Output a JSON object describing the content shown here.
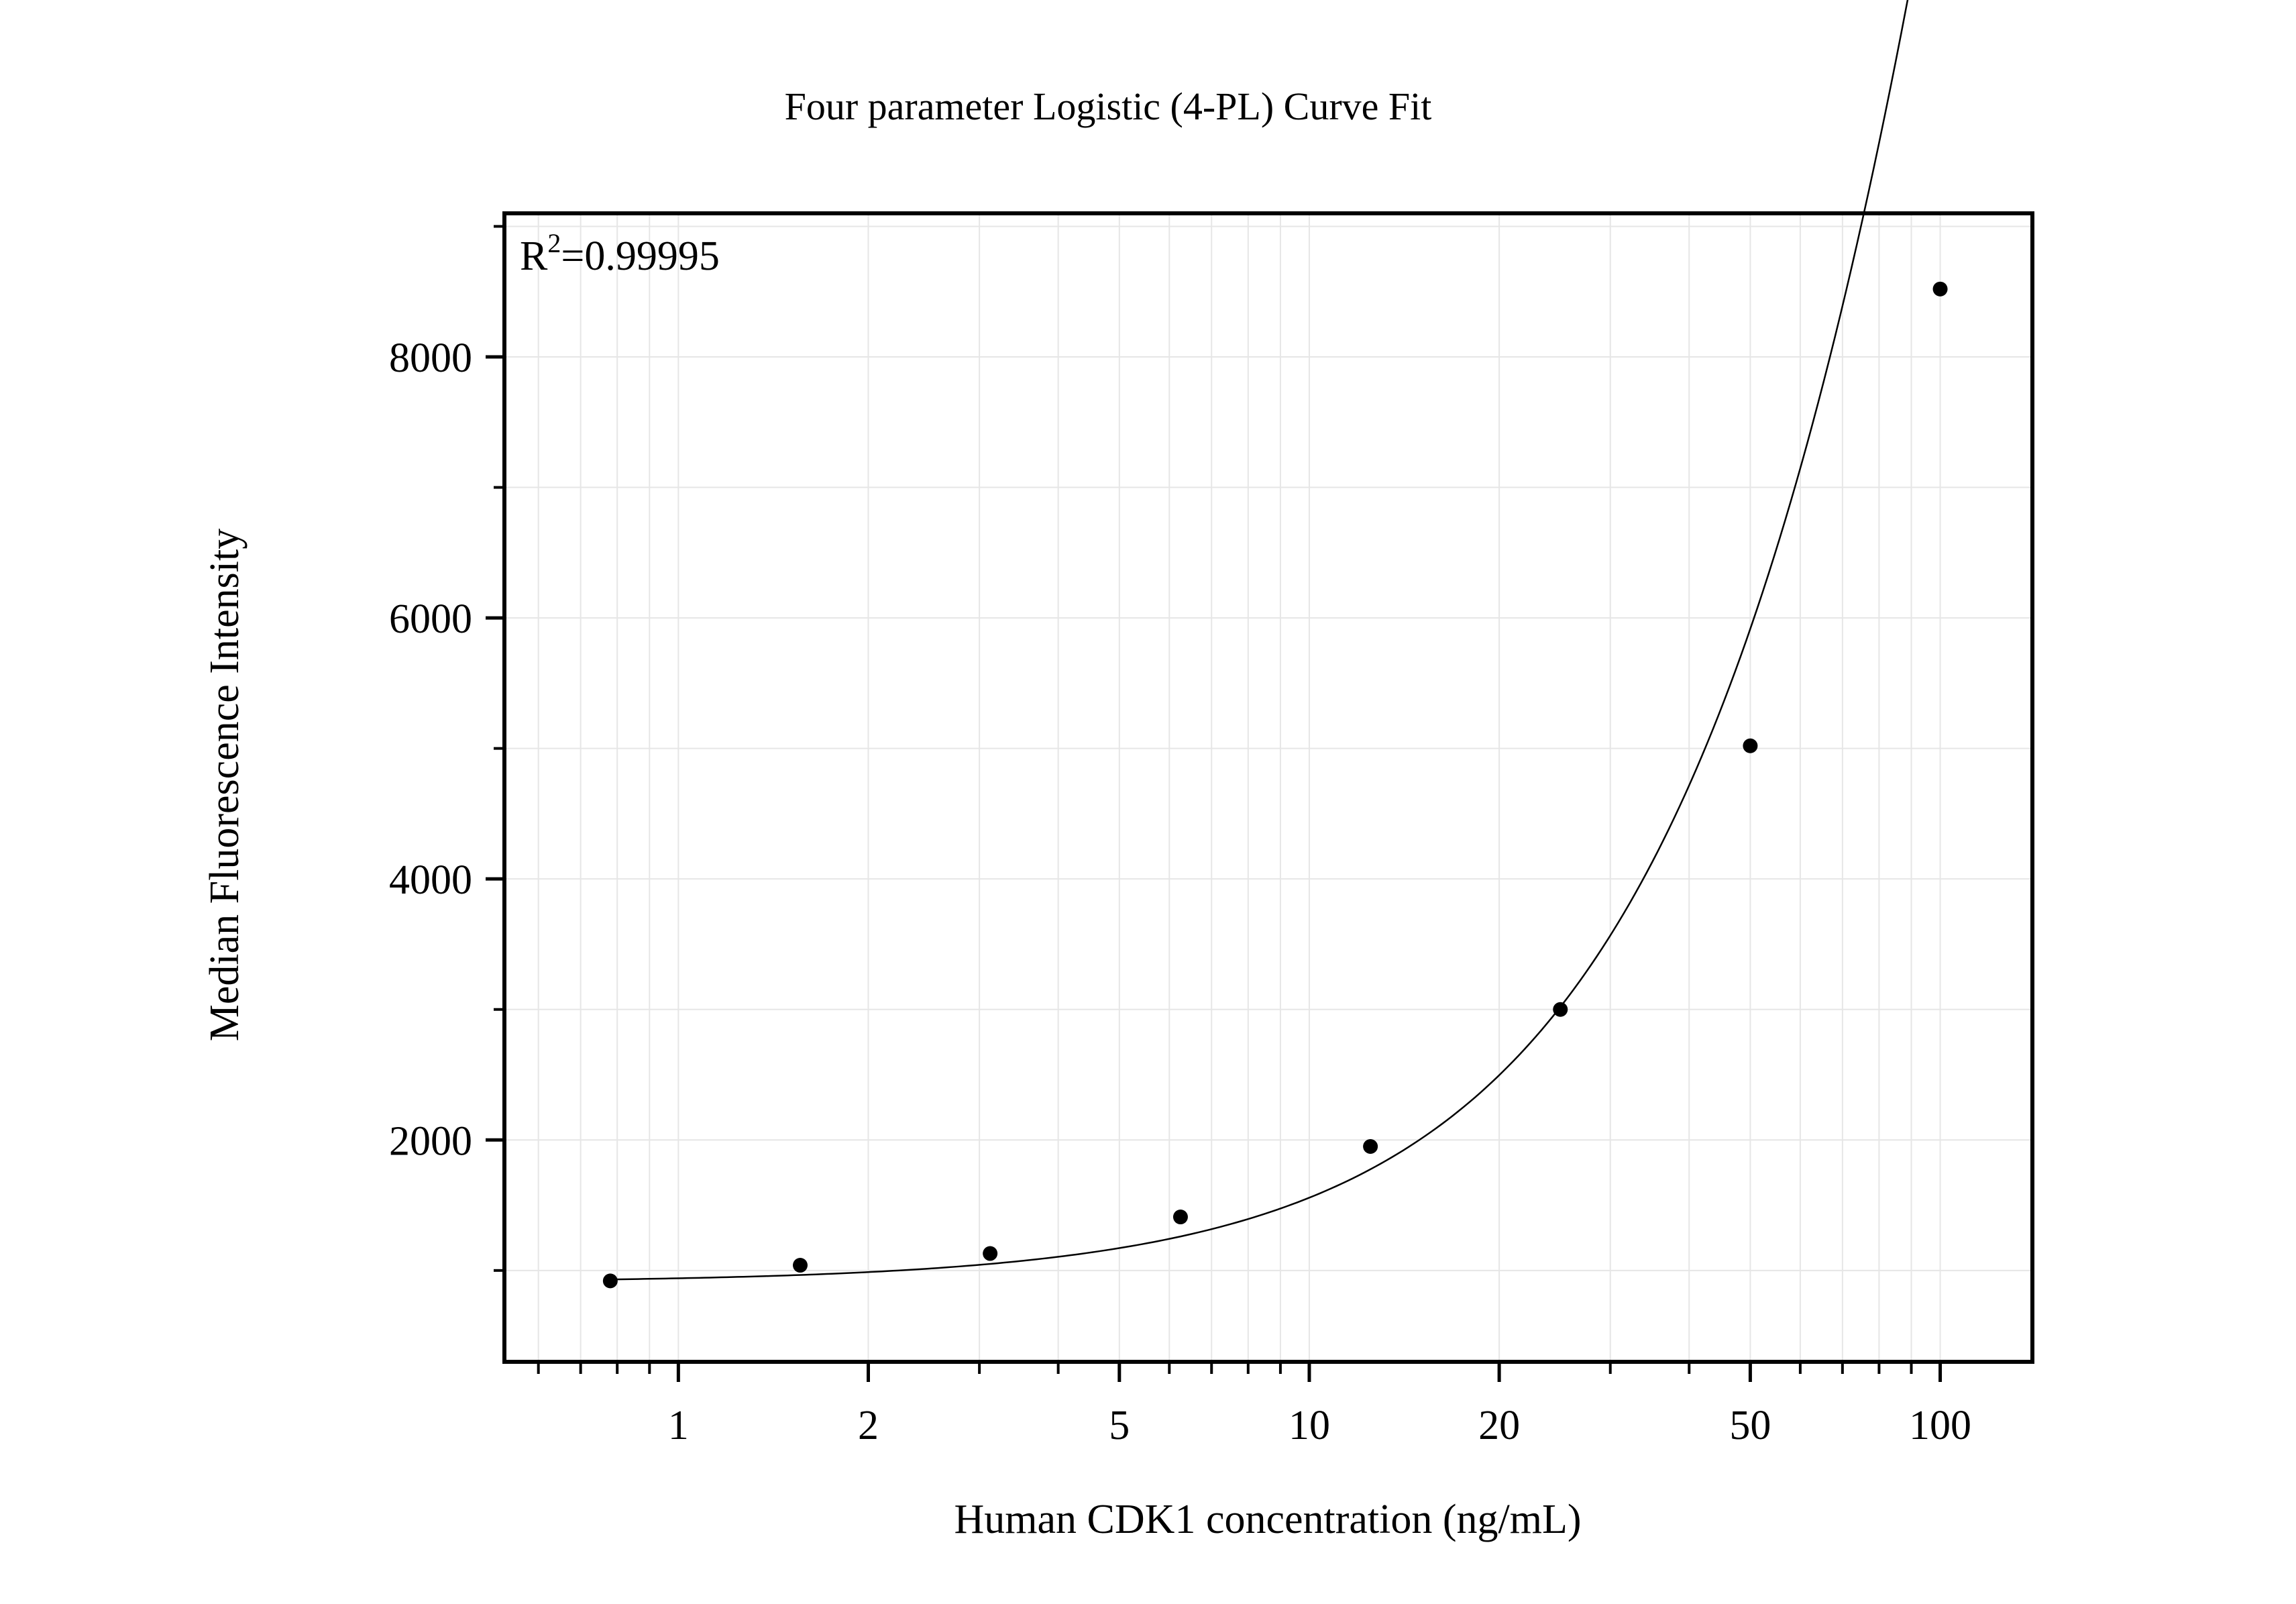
{
  "chart_data": {
    "type": "scatter",
    "title": "Four parameter Logistic (4-PL) Curve Fit",
    "xlabel": "Human CDK1 concentration (ng/mL)",
    "ylabel": "Median Fluorescence Intensity",
    "x_scale": "log",
    "xlim": [
      0.53,
      140
    ],
    "ylim": [
      300,
      9100
    ],
    "x_ticks": [
      1,
      2,
      5,
      10,
      20,
      50,
      100
    ],
    "x_tick_labels": [
      "1",
      "2",
      "5",
      "10",
      "20",
      "50",
      "100"
    ],
    "y_ticks": [
      2000,
      4000,
      6000,
      8000
    ],
    "y_tick_labels": [
      "2000",
      "4000",
      "6000",
      "8000"
    ],
    "y_minor_ticks": [
      1000,
      3000,
      5000,
      7000,
      9000
    ],
    "grid": true,
    "annotation": {
      "base": "R",
      "sup": "2",
      "rest": "=0.99995"
    },
    "points": [
      {
        "x": 0.78,
        "y": 920
      },
      {
        "x": 1.56,
        "y": 1040
      },
      {
        "x": 3.12,
        "y": 1130
      },
      {
        "x": 6.25,
        "y": 1410
      },
      {
        "x": 12.5,
        "y": 1950
      },
      {
        "x": 25,
        "y": 3000
      },
      {
        "x": 50,
        "y": 5020
      },
      {
        "x": 100,
        "y": 8520
      }
    ],
    "fit": {
      "model": "4PL",
      "A": 908,
      "B": 1.31,
      "C": 350,
      "D": 70000
    },
    "colors": {
      "point": "#000000",
      "curve": "#000000",
      "grid": "#e6e6e6",
      "frame": "#000000"
    }
  }
}
